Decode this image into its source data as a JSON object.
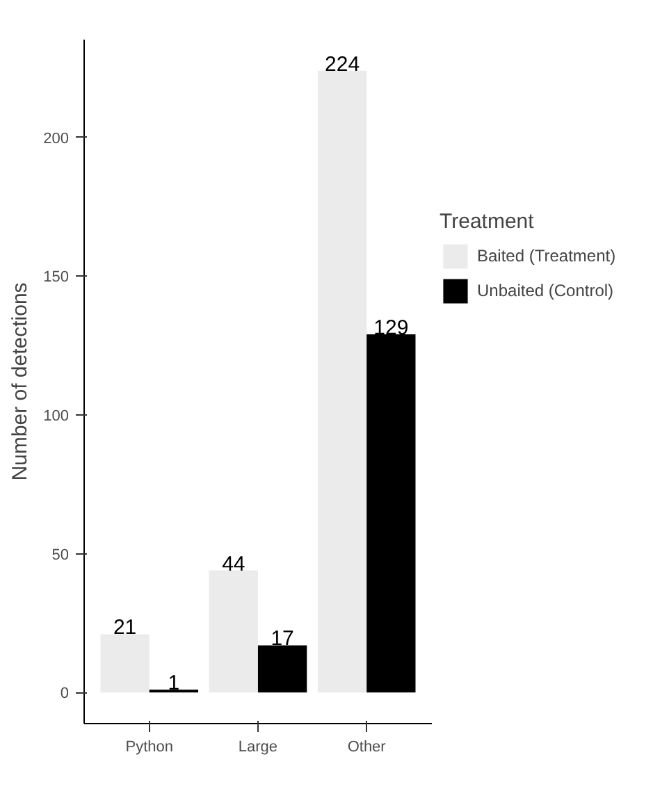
{
  "chart_data": {
    "type": "bar",
    "ylabel": "Number of detections",
    "legend_title": "Treatment",
    "categories": [
      "Python",
      "Large",
      "Other"
    ],
    "series": [
      {
        "name": "Baited (Treatment)",
        "color": "#ebebeb",
        "values": [
          21,
          44,
          224
        ]
      },
      {
        "name": "Unbaited (Control)",
        "color": "#000000",
        "values": [
          1,
          17,
          129
        ]
      }
    ],
    "ylim": [
      -11.2,
      235.2
    ],
    "yticks": [
      0,
      50,
      100,
      150,
      200
    ],
    "grid": false,
    "legend": "right",
    "data_labels": true
  }
}
